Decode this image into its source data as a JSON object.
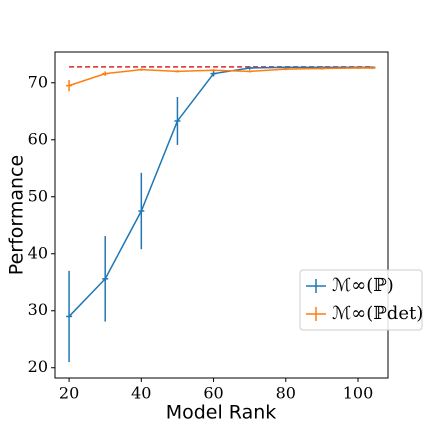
{
  "chart_data": {
    "type": "line",
    "xlabel": "Model Rank",
    "ylabel": "Performance",
    "x": [
      20,
      30,
      40,
      50,
      60,
      70,
      80,
      90,
      100,
      104
    ],
    "series": [
      {
        "name": "ℳ∞(ℙ)",
        "color": "#1f77b4",
        "values": [
          29,
          35.6,
          47.5,
          63.3,
          71.6,
          72.6,
          72.7,
          72.7,
          72.7,
          72.7
        ],
        "errors": [
          8,
          7.5,
          6.7,
          4.2,
          0.5,
          0.3,
          0.2,
          0.2,
          0.2,
          0.2
        ]
      },
      {
        "name": "ℳ∞(ℙdet)",
        "color": "#ff7f0e",
        "values": [
          69.5,
          71.6,
          72.3,
          72.0,
          72.2,
          72.0,
          72.4,
          72.5,
          72.6,
          72.6
        ],
        "errors": [
          1.0,
          0.4,
          0.2,
          0.2,
          0.2,
          0.2,
          0.2,
          0.2,
          0.2,
          0.2
        ]
      }
    ],
    "hline": {
      "value": 72.8,
      "color": "#d62728",
      "xmin": 20,
      "xmax": 104
    },
    "xlim": [
      16.1,
      108.3
    ],
    "xticks": [
      20,
      40,
      60,
      80,
      100
    ],
    "ylim": [
      18.2,
      75.4
    ],
    "yticks": [
      20,
      30,
      40,
      50,
      60,
      70
    ],
    "legend": "lower right"
  }
}
